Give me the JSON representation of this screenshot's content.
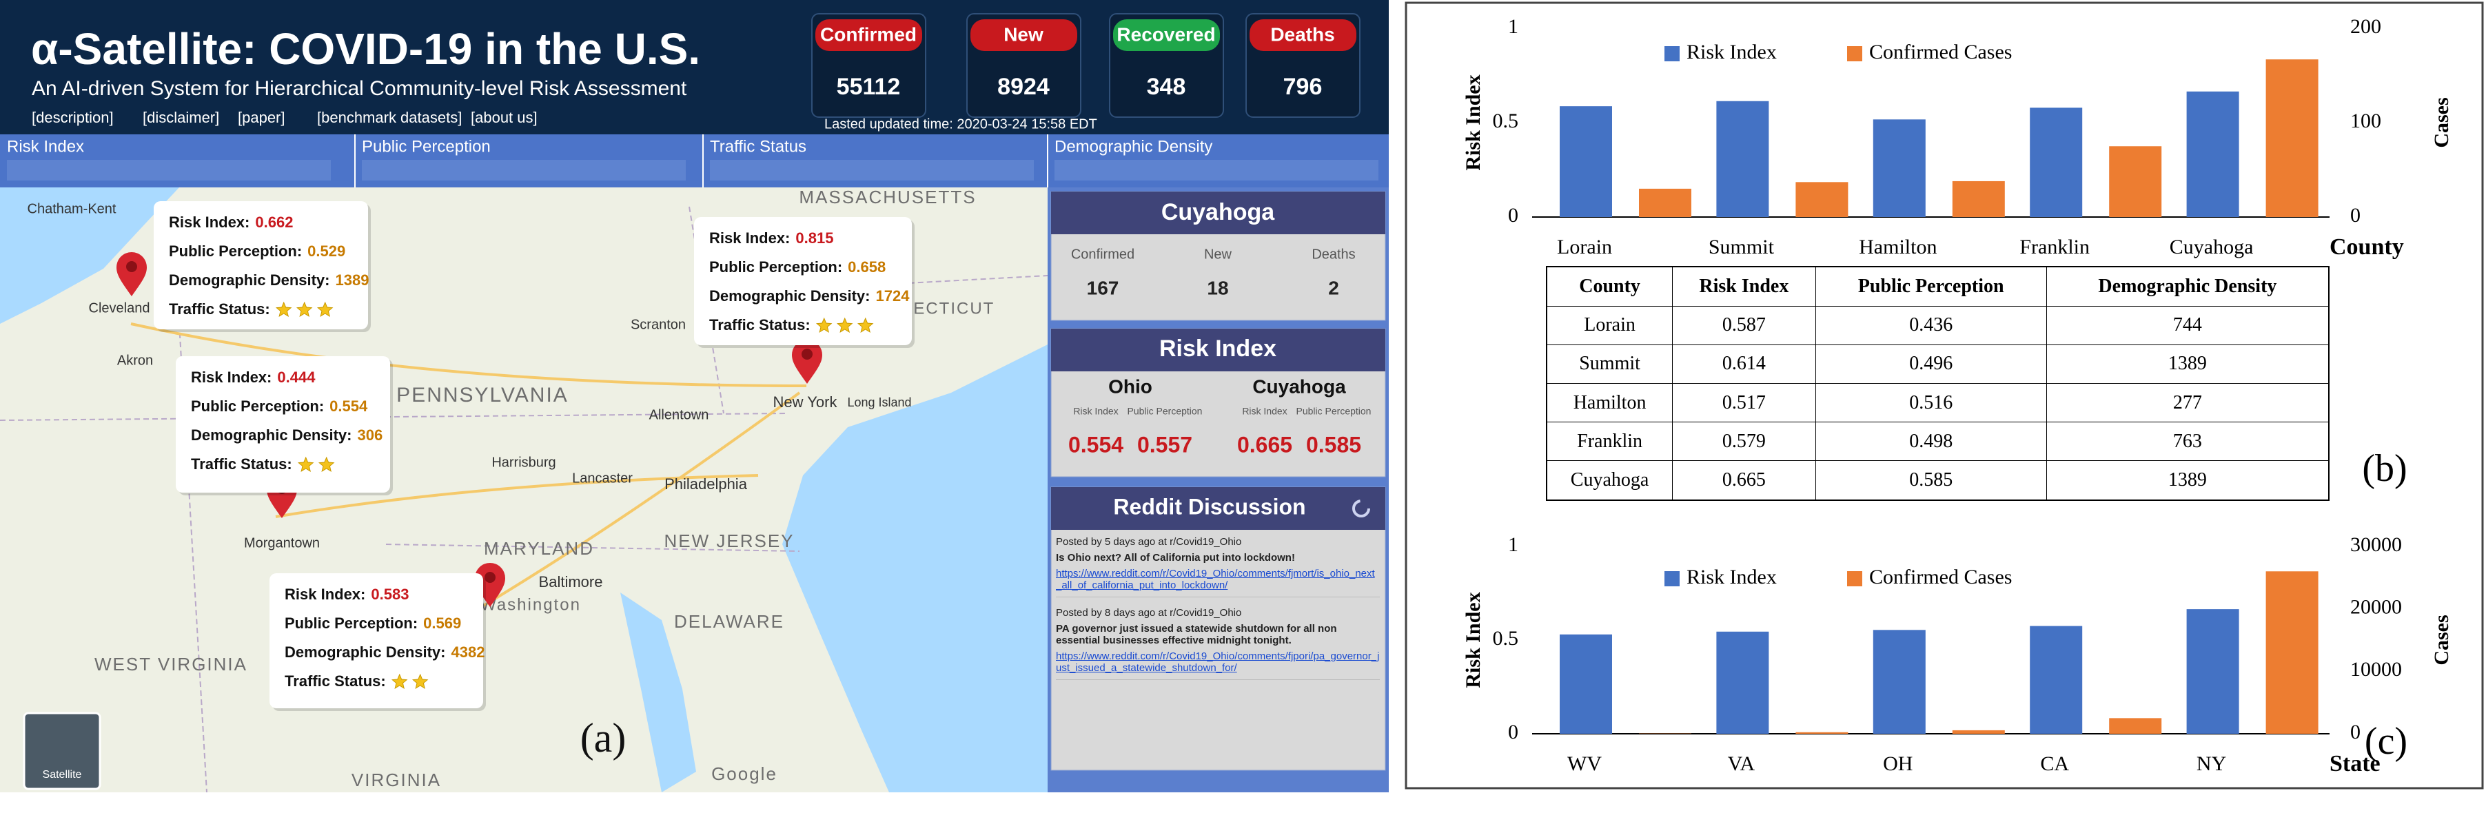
{
  "header": {
    "title": "α-Satellite: COVID-19 in the U.S.",
    "subtitle": "An AI-driven System for Hierarchical Community-level Risk Assessment",
    "links": [
      "[description]",
      "[disclaimer]",
      "[paper]",
      "[benchmark datasets]",
      "[about us]"
    ],
    "updated": "Lasted updated time: 2020-03-24 15:58 EDT"
  },
  "stats": [
    {
      "label": "Confirmed",
      "value": 55112,
      "color": "#c8191e"
    },
    {
      "label": "New",
      "value": 8924,
      "color": "#c8191e"
    },
    {
      "label": "Recovered",
      "value": 348,
      "color": "#1fa64a"
    },
    {
      "label": "Deaths",
      "value": 796,
      "color": "#c8191e"
    }
  ],
  "legend": [
    "Risk Index",
    "Public Perception",
    "Traffic Status",
    "Demographic Density"
  ],
  "map_labels": [
    "Chatham-Kent",
    "Cleveland",
    "Akron",
    "PENNSYLVANIA",
    "MASSACHUSETTS",
    "CONNECTICUT",
    "Scranton",
    "Allentown",
    "New York",
    "Long Island",
    "Harrisburg",
    "Lancaster",
    "Philadelphia",
    "NEW JERSEY",
    "Morgantown",
    "MARYLAND",
    "Baltimore",
    "Washington",
    "DELAWARE",
    "WEST VIRGINIA",
    "VIRGINIA",
    "Google",
    "Satellite"
  ],
  "popup_fields": [
    "Risk Index:",
    "Public Perception:",
    "Demographic Density:",
    "Traffic Status:"
  ],
  "popups": [
    {
      "risk": 0.662,
      "perception": 0.529,
      "density": 1389,
      "stars": 3
    },
    {
      "risk": 0.815,
      "perception": 0.658,
      "density": 1724,
      "stars": 3
    },
    {
      "risk": 0.444,
      "perception": 0.554,
      "density": 306,
      "stars": 2
    },
    {
      "risk": 0.583,
      "perception": 0.569,
      "density": 4382,
      "stars": 2
    }
  ],
  "county_card": {
    "title": "Cuyahoga",
    "labels": [
      "Confirmed",
      "New",
      "Deaths"
    ],
    "values": [
      167,
      18,
      2
    ]
  },
  "risk_card": {
    "title": "Risk Index",
    "labels": [
      "Risk Index",
      "Public Perception"
    ],
    "groups": [
      {
        "name": "Ohio",
        "values": [
          0.554,
          0.557
        ]
      },
      {
        "name": "Cuyahoga",
        "values": [
          0.665,
          0.585
        ]
      }
    ]
  },
  "reddit": {
    "title": "Reddit Discussion",
    "posts": [
      {
        "meta": "Posted by 5 days ago at r/Covid19_Ohio",
        "title": "Is Ohio next? All of California put into lockdown!",
        "url": "https://www.reddit.com/r/Covid19_Ohio/comments/fjmort/is_ohio_next_all_of_california_put_into_lockdown/"
      },
      {
        "meta": "Posted by 8 days ago at r/Covid19_Ohio",
        "title": "PA governor just issued a statewide shutdown for all non essential businesses effective midnight tonight.",
        "url": "https://www.reddit.com/r/Covid19_Ohio/comments/fjpori/pa_governor_just_issued_a_statewide_shutdown_for/"
      }
    ]
  },
  "panel_labels": [
    "(a)",
    "(b)",
    "(c)"
  ],
  "table": {
    "header": [
      "County",
      "Risk Index",
      "Public Perception",
      "Demographic Density"
    ],
    "rows": [
      [
        "Lorain",
        0.587,
        0.436,
        744
      ],
      [
        "Summit",
        0.614,
        0.496,
        1389
      ],
      [
        "Hamilton",
        0.517,
        0.516,
        277
      ],
      [
        "Franklin",
        0.579,
        0.498,
        763
      ],
      [
        "Cuyahoga",
        0.665,
        0.585,
        1389
      ]
    ]
  },
  "chart_data": [
    {
      "type": "bar",
      "xlabel": "County",
      "ylabel": "Risk Index",
      "y2label": "Cases",
      "categories": [
        "Lorain",
        "Summit",
        "Hamilton",
        "Franklin",
        "Cuyahoga"
      ],
      "series": [
        {
          "name": "Risk Index",
          "color": "#4472c4",
          "values": [
            0.587,
            0.614,
            0.517,
            0.579,
            0.665
          ]
        },
        {
          "name": "Confirmed Cases",
          "color": "#ed7d31",
          "axis": "y2",
          "values": [
            30,
            37,
            38,
            75,
            167
          ]
        }
      ],
      "ylim": [
        0,
        1
      ],
      "yticks": [
        0,
        0.5,
        1
      ],
      "y2lim": [
        0,
        200
      ],
      "y2ticks": [
        0,
        100,
        200
      ],
      "legend": "top"
    },
    {
      "type": "bar",
      "xlabel": "State",
      "ylabel": "Risk Index",
      "y2label": "Cases",
      "categories": [
        "WV",
        "VA",
        "OH",
        "CA",
        "NY"
      ],
      "series": [
        {
          "name": "Risk Index",
          "color": "#4472c4",
          "values": [
            0.53,
            0.545,
            0.554,
            0.575,
            0.665
          ]
        },
        {
          "name": "Confirmed Cases",
          "color": "#ed7d31",
          "axis": "y2",
          "values": [
            40,
            250,
            560,
            2500,
            26000
          ]
        }
      ],
      "ylim": [
        0,
        1
      ],
      "yticks": [
        0,
        0.5,
        1
      ],
      "y2lim": [
        0,
        30000
      ],
      "y2ticks": [
        0,
        10000,
        20000,
        30000
      ],
      "legend": "top"
    }
  ]
}
